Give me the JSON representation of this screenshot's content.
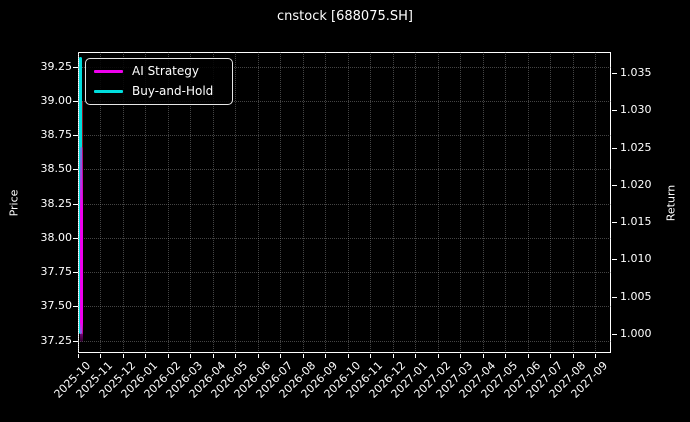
{
  "chart_data": {
    "type": "line",
    "title": "cnstock [688075.SH]",
    "background_color": "#000000",
    "text_color": "#ffffff",
    "grid": "dotted gray gridlines on both axes",
    "legend_position": "upper left",
    "x_axis": {
      "label": "",
      "tick_labels": [
        "2025-10",
        "2025-11",
        "2025-12",
        "2026-01",
        "2026-02",
        "2026-03",
        "2026-04",
        "2026-05",
        "2026-06",
        "2026-07",
        "2026-08",
        "2026-09",
        "2026-10",
        "2026-11",
        "2026-12",
        "2027-01",
        "2027-02",
        "2027-03",
        "2027-04",
        "2027-05",
        "2027-06",
        "2027-07",
        "2027-08",
        "2027-09"
      ],
      "range": [
        "2025-10",
        "2027-10"
      ],
      "tick_rotation_deg": 45
    },
    "y_left": {
      "label": "Price",
      "tick_labels": [
        "37.25",
        "37.50",
        "37.75",
        "38.00",
        "38.25",
        "38.50",
        "38.75",
        "39.00",
        "39.25"
      ],
      "range": [
        37.16,
        39.36
      ]
    },
    "y_right": {
      "label": "Return",
      "tick_labels": [
        "1.000",
        "1.005",
        "1.010",
        "1.015",
        "1.020",
        "1.025",
        "1.030",
        "1.035"
      ],
      "range": [
        0.9995,
        1.0378
      ]
    },
    "series": [
      {
        "name": "AI Strategy",
        "color": "#ee00ee",
        "axis": "left",
        "x_extent": "2025-10 only (data compressed into a vertical spike at the left edge)",
        "value_range": [
          37.24,
          38.66
        ],
        "note": "values estimated from spike extent on Price axis"
      },
      {
        "name": "Buy-and-Hold",
        "color": "#00dede",
        "axis": "right",
        "x_extent": "2025-10 only (data compressed into a vertical spike at the left edge)",
        "value_range": [
          1.0,
          1.0372
        ],
        "note": "values estimated from spike extent on Return axis"
      }
    ]
  }
}
